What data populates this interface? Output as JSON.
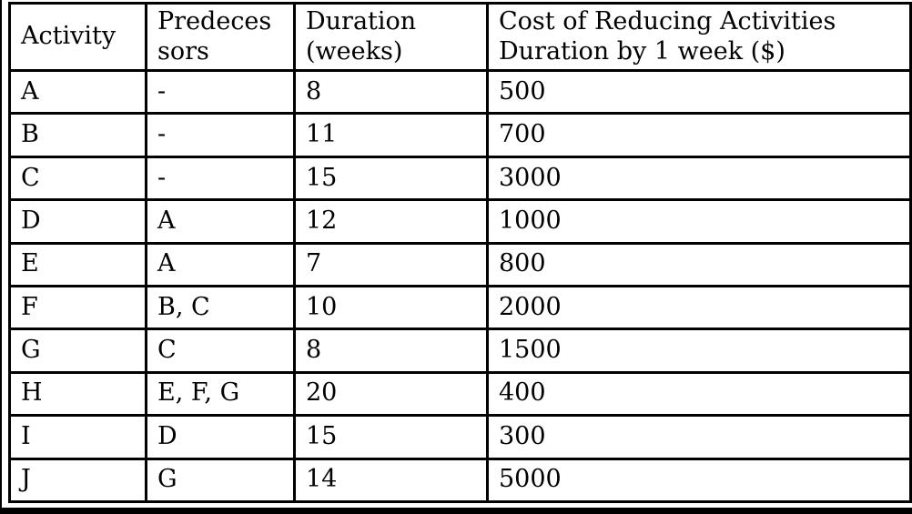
{
  "table": {
    "columns": [
      {
        "label": "Activity"
      },
      {
        "label": "Predeces\nsors"
      },
      {
        "label": "Duration\n(weeks)"
      },
      {
        "label": "Cost of Reducing Activities\nDuration by 1 week ($)"
      }
    ],
    "rows": [
      {
        "activity": "A",
        "predecessors": "-",
        "duration": "8",
        "cost": "500"
      },
      {
        "activity": "B",
        "predecessors": "-",
        "duration": "11",
        "cost": "700"
      },
      {
        "activity": "C",
        "predecessors": "-",
        "duration": "15",
        "cost": "3000"
      },
      {
        "activity": "D",
        "predecessors": "A",
        "duration": "12",
        "cost": "1000"
      },
      {
        "activity": "E",
        "predecessors": "A",
        "duration": "7",
        "cost": "800"
      },
      {
        "activity": "F",
        "predecessors": "B, C",
        "duration": "10",
        "cost": "2000"
      },
      {
        "activity": "G",
        "predecessors": "C",
        "duration": "8",
        "cost": "1500"
      },
      {
        "activity": "H",
        "predecessors": "E, F, G",
        "duration": "20",
        "cost": "400"
      },
      {
        "activity": "I",
        "predecessors": "D",
        "duration": "15",
        "cost": "300"
      },
      {
        "activity": "J",
        "predecessors": "G",
        "duration": "14",
        "cost": "5000"
      }
    ]
  },
  "colors": {
    "border": "#000000",
    "text": "#000000",
    "background": "#ffffff"
  }
}
